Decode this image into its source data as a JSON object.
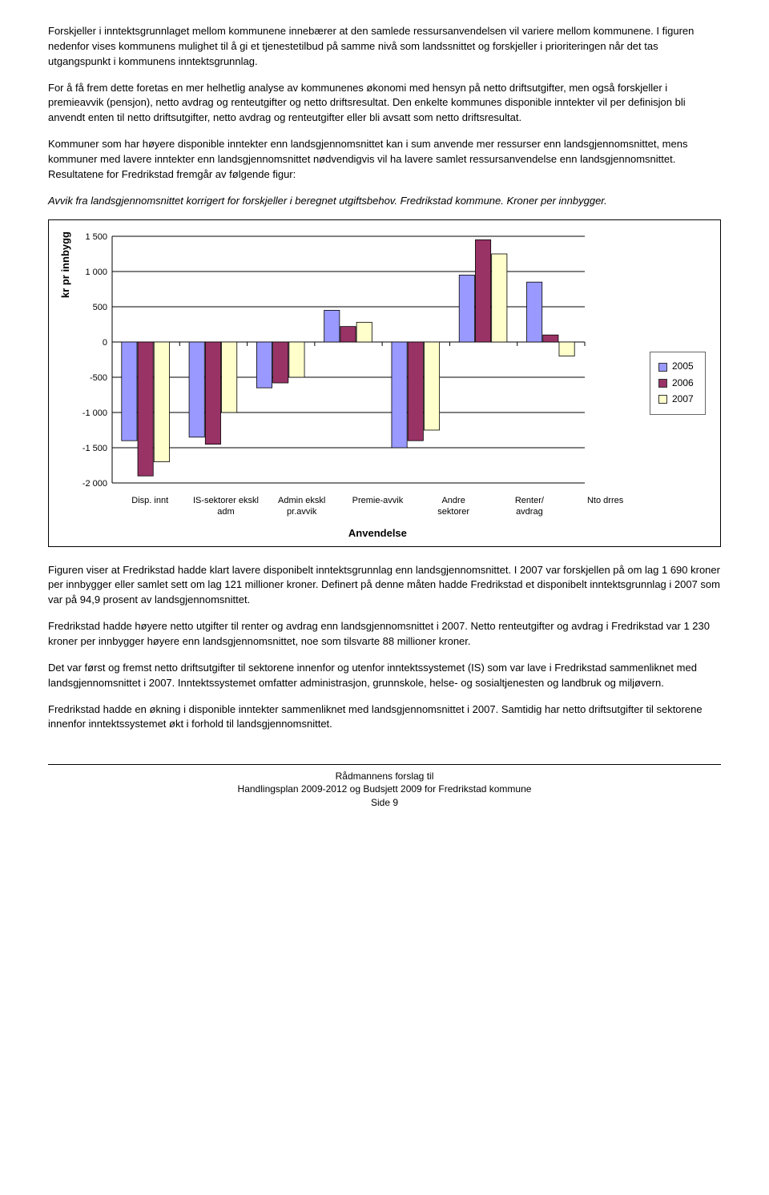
{
  "paragraphs": {
    "p1": "Forskjeller i inntektsgrunnlaget mellom kommunene innebærer at den samlede ressursanvendelsen vil variere mellom kommunene. I figuren nedenfor vises kommunens mulighet til å gi et tjenestetilbud på samme nivå som landssnittet og forskjeller i prioriteringen når det tas utgangspunkt i kommunens inntektsgrunnlag.",
    "p2": "For å få frem dette foretas en mer helhetlig analyse av kommunenes økonomi med hensyn på  netto driftsutgifter, men  også forskjeller i premieavvik (pensjon), netto avdrag og renteutgifter og netto driftsresultat. Den enkelte kommunes disponible inntekter vil per definisjon bli anvendt enten til netto driftsutgifter, netto avdrag og renteutgifter eller bli avsatt som netto driftsresultat.",
    "p3": "Kommuner som har høyere disponible inntekter enn landsgjennomsnittet kan i sum anvende mer ressurser enn landsgjennomsnittet, mens kommuner med lavere inntekter enn landsgjennomsnittet nødvendigvis vil ha lavere samlet ressursanvendelse enn landsgjennomsnittet. Resultatene for Fredrikstad fremgår av følgende figur:",
    "caption": "Avvik fra landsgjennomsnittet korrigert for forskjeller i beregnet utgiftsbehov. Fredrikstad kommune. Kroner per innbygger.",
    "p4": "Figuren viser at Fredrikstad hadde klart lavere disponibelt inntektsgrunnlag enn landsgjennomsnittet. I 2007 var forskjellen på om lag 1 690 kroner per innbygger eller samlet sett om lag 121 millioner kroner. Definert på denne måten hadde Fredrikstad et disponibelt inntektsgrunnlag i 2007 som var på 94,9 prosent av landsgjennomsnittet.",
    "p5": "Fredrikstad hadde høyere netto utgifter til renter og avdrag enn landsgjennomsnittet i 2007. Netto renteutgifter og avdrag i Fredrikstad var 1 230 kroner per innbygger høyere enn landsgjennomsnittet, noe som tilsvarte 88 millioner kroner.",
    "p6": "Det var først og fremst netto driftsutgifter til sektorene innenfor og utenfor inntektssystemet (IS) som var lave i Fredrikstad sammenliknet med landsgjennomsnittet i 2007.  Inntektssystemet omfatter administrasjon, grunnskole, helse- og sosialtjenesten og landbruk og miljøvern.",
    "p7": "Fredrikstad hadde en økning i disponible inntekter sammenliknet med landsgjennomsnittet i 2007. Samtidig har netto driftsutgifter til sektorene innenfor inntektssystemet økt i forhold til landsgjennomsnittet."
  },
  "chart": {
    "type": "bar",
    "y_axis_title": "kr pr innbygg",
    "x_axis_title": "Anvendelse",
    "categories": [
      "Disp. innt",
      "IS-sektorer ekskl adm",
      "Admin ekskl pr.avvik",
      "Premie-avvik",
      "Andre sektorer",
      "Renter/ avdrag",
      "Nto drres"
    ],
    "series": [
      {
        "name": "2005",
        "color": "#9999ff",
        "values": [
          -1400,
          -1350,
          -650,
          450,
          -1500,
          950,
          850
        ]
      },
      {
        "name": "2006",
        "color": "#993366",
        "values": [
          -1900,
          -1450,
          -580,
          220,
          -1400,
          1450,
          100
        ]
      },
      {
        "name": "2007",
        "color": "#ffffcc",
        "values": [
          -1700,
          -1000,
          -500,
          280,
          -1250,
          1250,
          -200
        ]
      }
    ],
    "ylim": [
      -2000,
      1500
    ],
    "ytick_step": 500,
    "yticks": [
      "1 500",
      "1 000",
      "500",
      "0",
      "-500",
      "-1 000",
      "-1 500",
      "-2 000"
    ],
    "legend_labels": [
      "2005",
      "2006",
      "2007"
    ],
    "legend_colors": [
      "#9999ff",
      "#993366",
      "#ffffcc"
    ],
    "grid_color": "#000000",
    "bar_border": "#000000",
    "background": "#ffffff"
  },
  "footer": {
    "l1": "Rådmannens forslag til",
    "l2": "Handlingsplan 2009-2012 og Budsjett 2009 for Fredrikstad kommune",
    "l3": "Side 9"
  }
}
